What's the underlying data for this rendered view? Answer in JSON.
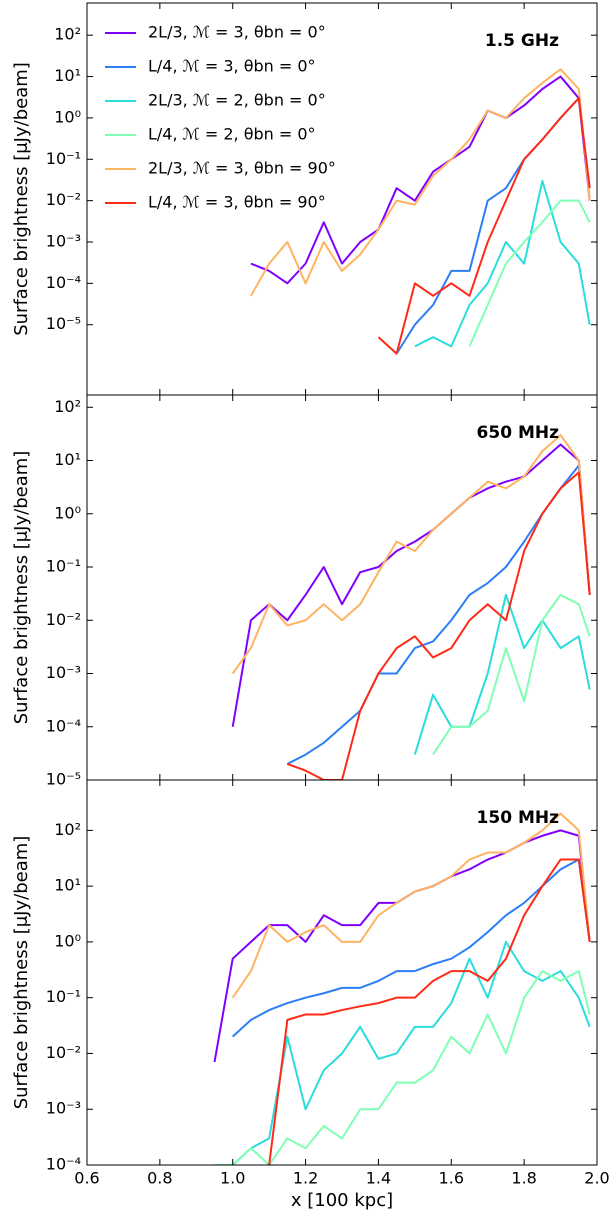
{
  "chart_data": [
    {
      "type": "line",
      "panel_label": "1.5 GHz",
      "ylabel": "Surface brightness [μJy/beam]",
      "log_y": true,
      "legend": "upper left",
      "xlim": [
        0.6,
        2.0
      ],
      "xticks": [
        0.6,
        0.8,
        1,
        1.2,
        1.4,
        1.6,
        1.8,
        2
      ],
      "ylim": [
        2e-07,
        600
      ],
      "yticks": [
        {
          "value": 1e-05,
          "label": "10⁻⁵"
        },
        {
          "value": 0.0001,
          "label": "10⁻⁴"
        },
        {
          "value": 0.001,
          "label": "10⁻³"
        },
        {
          "value": 0.01,
          "label": "10⁻²"
        },
        {
          "value": 0.1,
          "label": "10⁻¹"
        },
        {
          "value": 1,
          "label": "10⁰"
        },
        {
          "value": 10,
          "label": "10¹"
        },
        {
          "value": 100,
          "label": "10²"
        }
      ],
      "x": [
        0.95,
        1.0,
        1.05,
        1.1,
        1.15,
        1.2,
        1.25,
        1.3,
        1.35,
        1.4,
        1.45,
        1.5,
        1.55,
        1.6,
        1.65,
        1.7,
        1.75,
        1.8,
        1.85,
        1.9,
        1.95,
        1.98
      ],
      "series": [
        {
          "name": "2L/3, ℳ = 3, θbn = 0°",
          "color": "#8000ff",
          "values": [
            null,
            null,
            0.0003,
            0.0002,
            0.0001,
            0.0003,
            0.003,
            0.0003,
            0.001,
            0.002,
            0.02,
            0.01,
            0.05,
            0.1,
            0.2,
            1.5,
            1,
            2,
            5,
            10,
            3,
            0.01
          ]
        },
        {
          "name": "L/4, ℳ = 3, θbn = 0°",
          "color": "#2c7ef7",
          "values": [
            null,
            null,
            null,
            null,
            null,
            null,
            null,
            null,
            null,
            null,
            2e-06,
            1e-05,
            3e-05,
            0.0002,
            0.0002,
            0.01,
            0.02,
            0.1,
            0.3,
            1,
            3,
            0.02
          ]
        },
        {
          "name": "2L/3, ℳ = 2, θbn = 0°",
          "color": "#2adddd",
          "values": [
            null,
            null,
            null,
            null,
            null,
            null,
            null,
            null,
            null,
            null,
            null,
            3e-06,
            5e-06,
            3e-06,
            3e-05,
            0.0001,
            0.001,
            0.0003,
            0.03,
            0.001,
            0.0003,
            1e-05
          ]
        },
        {
          "name": "L/4, ℳ = 2, θbn = 0°",
          "color": "#80ffb4",
          "values": [
            null,
            null,
            null,
            null,
            null,
            null,
            null,
            null,
            null,
            null,
            null,
            null,
            null,
            null,
            3e-06,
            3e-05,
            0.0003,
            0.001,
            0.003,
            0.01,
            0.01,
            0.003
          ]
        },
        {
          "name": "2L/3, ℳ = 3, θbn = 90°",
          "color": "#ffb360",
          "values": [
            null,
            null,
            5e-05,
            0.0003,
            0.001,
            0.0001,
            0.001,
            0.0002,
            0.0005,
            0.002,
            0.01,
            0.008,
            0.04,
            0.1,
            0.3,
            1.5,
            1,
            3,
            7,
            15,
            5,
            0.01
          ]
        },
        {
          "name": "L/4, ℳ = 3, θbn = 90°",
          "color": "#ff2a15",
          "values": [
            null,
            null,
            null,
            null,
            null,
            null,
            null,
            null,
            null,
            5e-06,
            2e-06,
            0.0001,
            5e-05,
            0.0001,
            5e-05,
            0.001,
            0.01,
            0.1,
            0.3,
            1,
            3,
            0.02
          ]
        }
      ]
    },
    {
      "type": "line",
      "panel_label": "650 MHz",
      "ylabel": "Surface brightness [μJy/beam]",
      "log_y": true,
      "xlim": [
        0.6,
        2.0
      ],
      "xticks": [
        0.6,
        0.8,
        1,
        1.2,
        1.4,
        1.6,
        1.8,
        2
      ],
      "ylim": [
        1e-05,
        170
      ],
      "yticks": [
        {
          "value": 1e-05,
          "label": "10⁻⁵"
        },
        {
          "value": 0.0001,
          "label": "10⁻⁴"
        },
        {
          "value": 0.001,
          "label": "10⁻³"
        },
        {
          "value": 0.01,
          "label": "10⁻²"
        },
        {
          "value": 0.1,
          "label": "10⁻¹"
        },
        {
          "value": 1,
          "label": "10⁰"
        },
        {
          "value": 10,
          "label": "10¹"
        },
        {
          "value": 100,
          "label": "10²"
        }
      ],
      "x": [
        0.95,
        1.0,
        1.05,
        1.1,
        1.15,
        1.2,
        1.25,
        1.3,
        1.35,
        1.4,
        1.45,
        1.5,
        1.55,
        1.6,
        1.65,
        1.7,
        1.75,
        1.8,
        1.85,
        1.9,
        1.95,
        1.98
      ],
      "series": [
        {
          "color": "#8000ff",
          "values": [
            null,
            0.0001,
            0.01,
            0.02,
            0.01,
            0.03,
            0.1,
            0.02,
            0.08,
            0.1,
            0.2,
            0.3,
            0.5,
            1,
            2,
            3,
            4,
            5,
            10,
            20,
            10,
            0.03
          ]
        },
        {
          "color": "#2c7ef7",
          "values": [
            null,
            null,
            null,
            null,
            2e-05,
            3e-05,
            5e-05,
            0.0001,
            0.0002,
            0.001,
            0.001,
            0.003,
            0.004,
            0.01,
            0.03,
            0.05,
            0.1,
            0.3,
            1,
            3,
            8,
            0.03
          ]
        },
        {
          "color": "#2adddd",
          "values": [
            null,
            null,
            null,
            null,
            5e-05,
            null,
            null,
            null,
            null,
            null,
            null,
            3e-05,
            0.0004,
            0.0001,
            0.0001,
            0.001,
            0.03,
            0.003,
            0.01,
            0.003,
            0.005,
            0.0005
          ]
        },
        {
          "color": "#80ffb4",
          "values": [
            null,
            null,
            null,
            null,
            null,
            null,
            null,
            null,
            null,
            null,
            null,
            null,
            3e-05,
            0.0001,
            0.0001,
            0.0002,
            0.003,
            0.0003,
            0.01,
            0.03,
            0.02,
            0.005
          ]
        },
        {
          "color": "#ffb360",
          "values": [
            null,
            0.001,
            0.003,
            0.02,
            0.008,
            0.01,
            0.02,
            0.01,
            0.02,
            0.08,
            0.3,
            0.2,
            0.5,
            1,
            2,
            4,
            3,
            5,
            15,
            30,
            10,
            0.03
          ]
        },
        {
          "color": "#ff2a15",
          "values": [
            null,
            null,
            null,
            null,
            2e-05,
            1.5e-05,
            1e-05,
            1e-05,
            0.0002,
            0.001,
            0.003,
            0.005,
            0.002,
            0.003,
            0.01,
            0.02,
            0.01,
            0.2,
            1,
            3,
            6,
            0.03
          ]
        }
      ]
    },
    {
      "type": "line",
      "panel_label": "150 MHz",
      "ylabel": "Surface brightness [μJy/beam]",
      "xlabel": "x [100 kpc]",
      "log_y": true,
      "xlim": [
        0.6,
        2.0
      ],
      "xticks": [
        0.6,
        0.8,
        {
          "value": 1,
          "label": "1.0"
        },
        1.2,
        1.4,
        1.6,
        1.8,
        {
          "value": 2,
          "label": "2.0"
        }
      ],
      "ylim": [
        0.0001,
        800
      ],
      "yticks": [
        {
          "value": 0.0001,
          "label": "10⁻⁴"
        },
        {
          "value": 0.001,
          "label": "10⁻³"
        },
        {
          "value": 0.01,
          "label": "10⁻²"
        },
        {
          "value": 0.1,
          "label": "10⁻¹"
        },
        {
          "value": 1,
          "label": "10⁰"
        },
        {
          "value": 10,
          "label": "10¹"
        },
        {
          "value": 100,
          "label": "10²"
        }
      ],
      "x": [
        0.95,
        1.0,
        1.05,
        1.1,
        1.15,
        1.2,
        1.25,
        1.3,
        1.35,
        1.4,
        1.45,
        1.5,
        1.55,
        1.6,
        1.65,
        1.7,
        1.75,
        1.8,
        1.85,
        1.9,
        1.95,
        1.98
      ],
      "series": [
        {
          "color": "#8000ff",
          "values": [
            0.007,
            0.5,
            1,
            2,
            2,
            1,
            3,
            2,
            2,
            5,
            5,
            8,
            10,
            15,
            20,
            30,
            40,
            60,
            80,
            100,
            80,
            1
          ]
        },
        {
          "color": "#2c7ef7",
          "values": [
            null,
            0.02,
            0.04,
            0.06,
            0.08,
            0.1,
            0.12,
            0.15,
            0.15,
            0.2,
            0.3,
            0.3,
            0.4,
            0.5,
            0.8,
            1.5,
            3,
            5,
            10,
            20,
            30,
            1
          ]
        },
        {
          "color": "#2adddd",
          "values": [
            null,
            0.0001,
            0.0002,
            0.0003,
            0.02,
            0.001,
            0.005,
            0.01,
            0.03,
            0.008,
            0.01,
            0.03,
            0.03,
            0.08,
            0.5,
            0.1,
            1,
            0.3,
            0.2,
            0.3,
            0.1,
            0.03
          ]
        },
        {
          "color": "#80ffb4",
          "values": [
            0.0001,
            0.0001,
            0.0002,
            0.0001,
            0.0003,
            0.0002,
            0.0005,
            0.0003,
            0.001,
            0.001,
            0.003,
            0.003,
            0.005,
            0.02,
            0.01,
            0.05,
            0.01,
            0.1,
            0.3,
            0.2,
            0.3,
            0.05
          ]
        },
        {
          "color": "#ffb360",
          "values": [
            null,
            0.1,
            0.3,
            2,
            1,
            1.5,
            2,
            1,
            1,
            3,
            5,
            8,
            10,
            15,
            30,
            40,
            40,
            60,
            100,
            200,
            100,
            1
          ]
        },
        {
          "color": "#ff2a15",
          "values": [
            null,
            null,
            null,
            0.0001,
            0.04,
            0.05,
            0.05,
            0.06,
            0.07,
            0.08,
            0.1,
            0.1,
            0.2,
            0.3,
            0.3,
            0.2,
            0.5,
            3,
            10,
            30,
            30,
            1
          ]
        }
      ]
    }
  ]
}
